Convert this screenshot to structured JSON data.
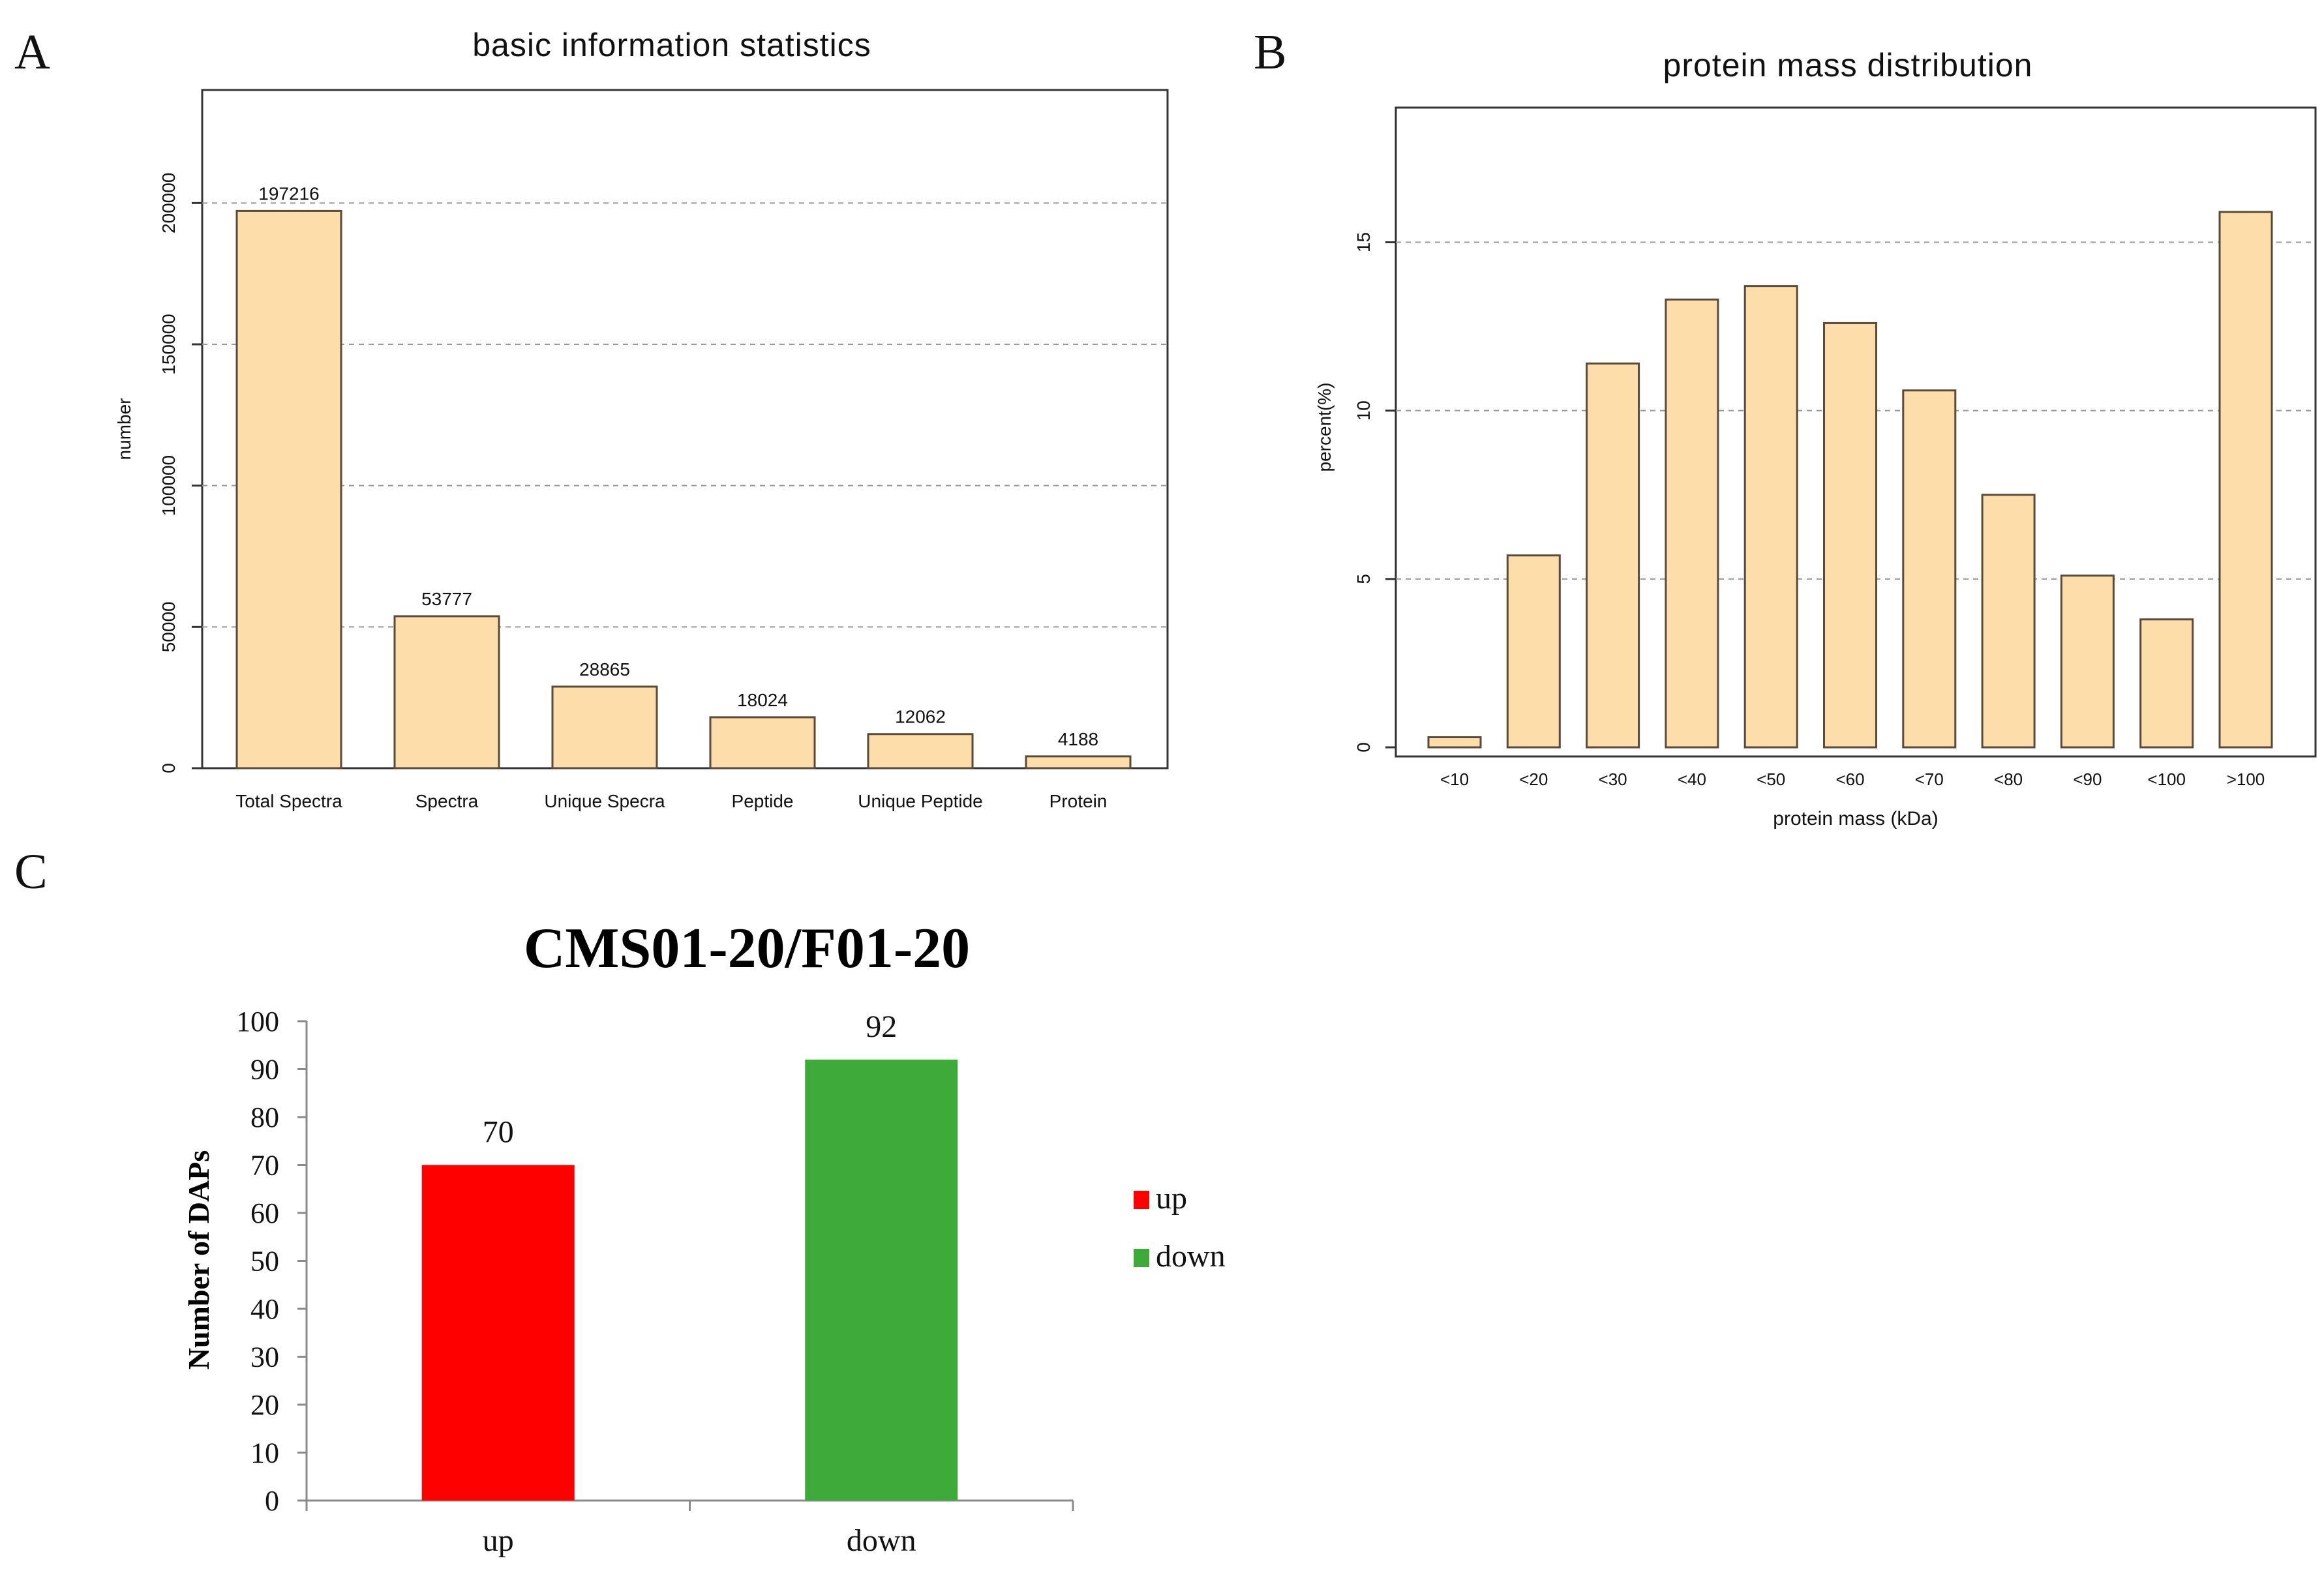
{
  "chart_data": [
    {
      "panel_label": "A",
      "type": "bar",
      "title": "basic information statistics",
      "xlabel": "",
      "ylabel": "number",
      "categories": [
        "Total Spectra",
        "Spectra",
        "Unique Specra",
        "Peptide",
        "Unique Peptide",
        "Protein"
      ],
      "values": [
        197216,
        53777,
        28865,
        18024,
        12062,
        4188
      ],
      "data_labels": [
        "197216",
        "53777",
        "28865",
        "18024",
        "12062",
        "4188"
      ],
      "ylim": [
        0,
        240000
      ],
      "yticks": [
        0,
        50000,
        100000,
        150000,
        200000
      ],
      "ytick_labels": [
        "0",
        "50000",
        "100000",
        "150000",
        "200000"
      ],
      "grid": true,
      "bar_color": "#FDDEAA",
      "bar_stroke": "#5a4a3a"
    },
    {
      "panel_label": "B",
      "type": "bar",
      "title": "protein mass distribution",
      "xlabel": "protein mass (kDa)",
      "ylabel": "percent(%)",
      "categories": [
        "<10",
        "<20",
        "<30",
        "<40",
        "<50",
        "<60",
        "<70",
        "<80",
        "<90",
        "<100",
        ">100"
      ],
      "values": [
        0.3,
        5.7,
        11.4,
        13.3,
        13.7,
        12.6,
        10.6,
        7.5,
        5.1,
        3.8,
        15.9
      ],
      "ylim": [
        0,
        19
      ],
      "yticks": [
        0,
        5,
        10,
        15
      ],
      "ytick_labels": [
        "0",
        "5",
        "10",
        "15"
      ],
      "grid": true,
      "bar_color": "#FDDEAA",
      "bar_stroke": "#5a4a3a"
    },
    {
      "panel_label": "C",
      "type": "bar",
      "title": "CMS01-20/F01-20",
      "xlabel": "",
      "ylabel": "Number of DAPs",
      "categories": [
        "up",
        "down"
      ],
      "values": [
        70,
        92
      ],
      "data_labels": [
        "70",
        "92"
      ],
      "colors": [
        "#FF0000",
        "#3DAA3A"
      ],
      "ylim": [
        0,
        100
      ],
      "yticks": [
        0,
        10,
        20,
        30,
        40,
        50,
        60,
        70,
        80,
        90,
        100
      ],
      "ytick_labels": [
        "0",
        "10",
        "20",
        "30",
        "40",
        "50",
        "60",
        "70",
        "80",
        "90",
        "100"
      ],
      "grid": false,
      "legend": {
        "position": "right",
        "entries": [
          "up",
          "down"
        ]
      }
    }
  ]
}
